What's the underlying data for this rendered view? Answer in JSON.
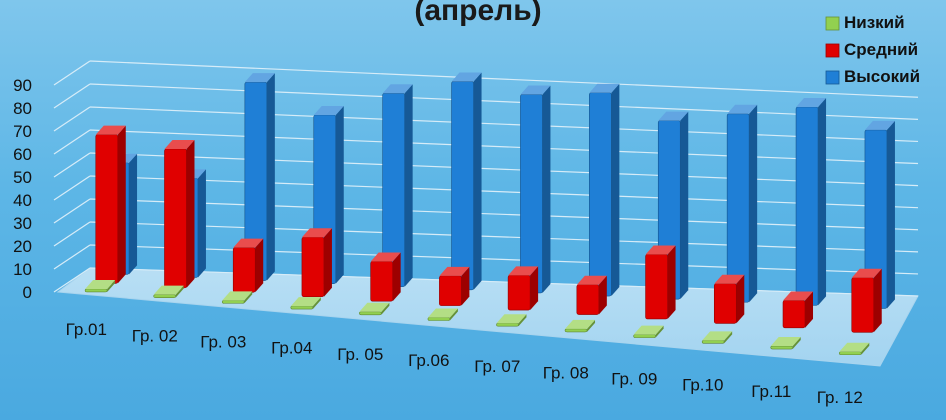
{
  "chart_data": {
    "type": "bar",
    "title": "(апрель)",
    "categories": [
      "Гр.01",
      "Гр. 02",
      "Гр. 03",
      "Гр.04",
      "Гр. 05",
      "Гр.06",
      "Гр. 07",
      "Гр. 08",
      "Гр. 09",
      "Гр.10",
      "Гр.11",
      "Гр. 12"
    ],
    "series": [
      {
        "name": "Низкий",
        "color": "#92d050",
        "values": [
          1,
          1,
          0,
          1,
          0,
          0,
          0,
          0,
          0,
          0,
          0,
          0
        ]
      },
      {
        "name": "Средний",
        "color": "#e00000",
        "values": [
          60,
          56,
          18,
          24,
          16,
          12,
          14,
          12,
          26,
          16,
          11,
          22
        ]
      },
      {
        "name": "Высокий",
        "color": "#1f7fd6",
        "values": [
          45,
          40,
          80,
          68,
          78,
          84,
          80,
          82,
          72,
          76,
          80,
          72
        ]
      }
    ],
    "ylim": [
      0,
      90
    ],
    "yticks": [
      "0",
      "10",
      "20",
      "30",
      "40",
      "50",
      "60",
      "70",
      "80",
      "90"
    ],
    "legend_position": "top-right",
    "grid": true
  }
}
